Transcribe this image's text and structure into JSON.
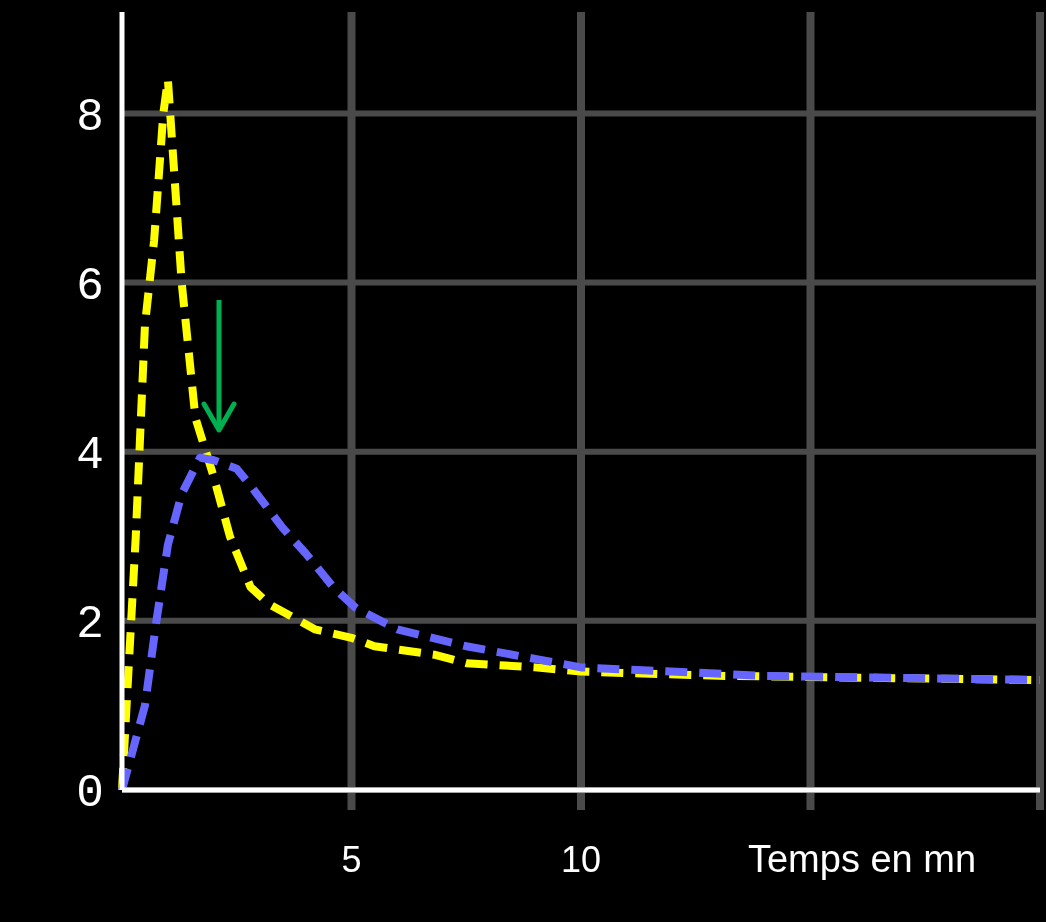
{
  "chart_data": {
    "type": "line",
    "xlabel": "Temps en mn",
    "xlim": [
      0,
      20
    ],
    "ylim": [
      0,
      9.2
    ],
    "xticks": [
      {
        "value": 5,
        "label": "5"
      },
      {
        "value": 10,
        "label": "10"
      },
      {
        "value": 15,
        "label": null
      },
      {
        "value": 20,
        "label": null
      }
    ],
    "yticks": [
      0,
      2,
      4,
      6,
      8
    ],
    "grid": true,
    "line_style": "dashed",
    "marker": "none",
    "series": [
      {
        "color": "#ffff00",
        "x": [
          0,
          0.2,
          0.3,
          0.5,
          0.7,
          0.9,
          1.0,
          1.3,
          1.6,
          2.0,
          2.35,
          2.8,
          3.2,
          4.2,
          5,
          5.5,
          6.8,
          7.5,
          9,
          10,
          13,
          20
        ],
        "values": [
          0,
          2,
          3,
          5.5,
          6.5,
          8.0,
          8.4,
          6.0,
          4.4,
          3.7,
          3.0,
          2.4,
          2.2,
          1.9,
          1.8,
          1.7,
          1.6,
          1.5,
          1.45,
          1.4,
          1.35,
          1.3
        ]
      },
      {
        "color": "#6666ff",
        "x": [
          0,
          0.5,
          0.75,
          1.0,
          1.3,
          1.7,
          2.0,
          2.5,
          2.8,
          3.5,
          4.0,
          4.6,
          5.1,
          6,
          7.5,
          9,
          10,
          14,
          20
        ],
        "values": [
          0,
          1,
          2,
          2.9,
          3.5,
          3.93,
          3.9,
          3.8,
          3.6,
          3.1,
          2.8,
          2.4,
          2.15,
          1.9,
          1.7,
          1.55,
          1.45,
          1.35,
          1.3
        ]
      }
    ]
  }
}
